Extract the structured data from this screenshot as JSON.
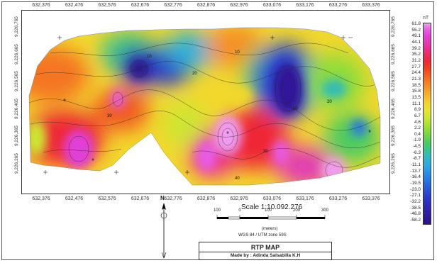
{
  "map": {
    "x_ticks": [
      "632,376",
      "632,476",
      "632,576",
      "632,676",
      "632,776",
      "632,876",
      "632,976",
      "633,076",
      "633,176",
      "633,276",
      "633,376"
    ],
    "y_ticks": [
      "9,226,765",
      "9,226,665",
      "9,226,565",
      "9,226,465",
      "9,226,365",
      "9,226,265"
    ],
    "contour_labels": [
      "10",
      "20",
      "10",
      "30",
      "20",
      "-10",
      "30",
      "40"
    ]
  },
  "legend": {
    "unit": "nT",
    "labels": [
      "61.8",
      "55.2",
      "49.1",
      "44.1",
      "39.2",
      "35.2",
      "31.2",
      "27.7",
      "24.4",
      "21.3",
      "18.5",
      "15.8",
      "13.5",
      "11.1",
      "8.9",
      "6.7",
      "4.6",
      "2.2",
      "0.4",
      "-1.9",
      "-4.5",
      "-6.3",
      "-8.7",
      "-11.1",
      "-13.7",
      "-16.4",
      "-19.5",
      "-23.0",
      "-27.1",
      "-32.2",
      "-38.5",
      "-46.8",
      "-58.2"
    ],
    "colors": [
      "#f09cf0",
      "#e85ce6",
      "#e040d8",
      "#e23cb4",
      "#e8308a",
      "#ec2a60",
      "#ee2834",
      "#ee3a22",
      "#f05822",
      "#f47424",
      "#f68e26",
      "#f8a828",
      "#f6c22a",
      "#f2d82c",
      "#e6e42e",
      "#cce630",
      "#aee234",
      "#8edc3a",
      "#6cd448",
      "#4ccc60",
      "#3cc48c",
      "#32bcb8",
      "#30b0d8",
      "#2ea0e8",
      "#2c8ce8",
      "#2a76e2",
      "#2860da",
      "#2a4ad2",
      "#2c38c8",
      "#2e2ab8",
      "#3020a8",
      "#30189a",
      "#2c1288"
    ]
  },
  "scale": {
    "title": "Scale 1:10.092.276",
    "ticks": [
      "100",
      "0",
      "100",
      "200",
      "300"
    ],
    "units": "(meters)",
    "crs": "WGS 84 / UTM zone 59S"
  },
  "north_label": "N",
  "title_block": {
    "title": "RTP MAP",
    "author": "Made by : Adinda Salsabilla K.H"
  }
}
